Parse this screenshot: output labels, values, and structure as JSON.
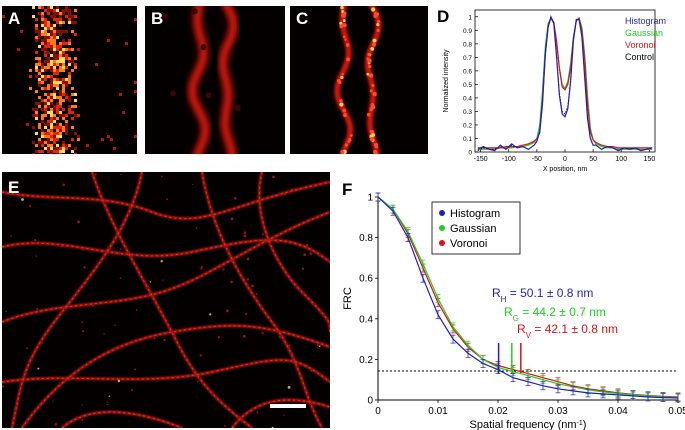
{
  "panels": {
    "A": {
      "letter": "A"
    },
    "B": {
      "letter": "B"
    },
    "C": {
      "letter": "C"
    },
    "D": {
      "letter": "D"
    },
    "E": {
      "letter": "E"
    },
    "F": {
      "letter": "F"
    }
  },
  "colors": {
    "histogram": "#1f1fbf",
    "gaussian": "#22cc22",
    "voronoi": "#dd1111",
    "control": "#000000",
    "microscopy": "#ff2a1a"
  },
  "chart_data": [
    {
      "panel": "D",
      "type": "line",
      "title": "",
      "xlabel": "X position, nm",
      "ylabel": "Normalized intensity",
      "xlim": [
        -160,
        160
      ],
      "ylim": [
        0,
        1.05
      ],
      "xticks": [
        -150,
        -100,
        -50,
        0,
        50,
        100,
        150
      ],
      "yticks": [
        0,
        0.1,
        0.2,
        0.3,
        0.4,
        0.5,
        0.6,
        0.7,
        0.8,
        0.9,
        1
      ],
      "xtick_labels": [
        "-150",
        "-100",
        "-50",
        "0",
        "50",
        "100",
        "150"
      ],
      "ytick_labels": [
        "0",
        "0.1",
        "0.2",
        "0.3",
        "0.4",
        "0.5",
        "0.6",
        "0.7",
        "0.8",
        "0.9",
        "1"
      ],
      "legend_position": "top-right",
      "x": [
        -155,
        -145,
        -135,
        -125,
        -115,
        -105,
        -95,
        -85,
        -75,
        -65,
        -55,
        -50,
        -45,
        -40,
        -35,
        -30,
        -25,
        -20,
        -15,
        -10,
        -5,
        0,
        5,
        10,
        15,
        20,
        25,
        30,
        35,
        40,
        45,
        50,
        55,
        65,
        75,
        85,
        95,
        105,
        115,
        125,
        135,
        145,
        155
      ],
      "series": [
        {
          "name": "Histogram",
          "values": [
            0.02,
            0.04,
            0.02,
            0.01,
            0.05,
            0.02,
            0.06,
            0.03,
            0.04,
            0.02,
            0.05,
            0.08,
            0.15,
            0.38,
            0.72,
            0.92,
            1.0,
            0.95,
            0.7,
            0.42,
            0.28,
            0.26,
            0.32,
            0.52,
            0.82,
            0.98,
            0.98,
            0.85,
            0.55,
            0.25,
            0.1,
            0.05,
            0.05,
            0.02,
            0.04,
            0.03,
            0.01,
            0.03,
            0.02,
            0.03,
            0.01,
            0.02,
            0.03
          ]
        },
        {
          "name": "Gaussian",
          "values": [
            0.02,
            0.02,
            0.02,
            0.02,
            0.03,
            0.03,
            0.03,
            0.04,
            0.04,
            0.05,
            0.07,
            0.1,
            0.2,
            0.45,
            0.78,
            0.95,
            0.99,
            0.95,
            0.8,
            0.62,
            0.5,
            0.47,
            0.52,
            0.65,
            0.85,
            0.97,
            0.99,
            0.92,
            0.72,
            0.42,
            0.18,
            0.09,
            0.06,
            0.04,
            0.03,
            0.03,
            0.02,
            0.02,
            0.02,
            0.02,
            0.02,
            0.02,
            0.02
          ]
        },
        {
          "name": "Voronoi",
          "values": [
            0.03,
            0.03,
            0.03,
            0.03,
            0.03,
            0.04,
            0.04,
            0.04,
            0.05,
            0.06,
            0.08,
            0.1,
            0.14,
            0.35,
            0.72,
            0.93,
            0.99,
            0.96,
            0.82,
            0.62,
            0.48,
            0.46,
            0.5,
            0.62,
            0.84,
            0.97,
            0.99,
            0.9,
            0.68,
            0.35,
            0.15,
            0.09,
            0.07,
            0.05,
            0.04,
            0.04,
            0.03,
            0.03,
            0.03,
            0.03,
            0.03,
            0.03,
            0.03
          ]
        },
        {
          "name": "Control",
          "values": [
            0.01,
            0.03,
            0.02,
            0.02,
            0.04,
            0.02,
            0.05,
            0.03,
            0.04,
            0.02,
            0.05,
            0.08,
            0.16,
            0.4,
            0.74,
            0.93,
            1.0,
            0.96,
            0.72,
            0.44,
            0.3,
            0.28,
            0.34,
            0.54,
            0.84,
            0.98,
            0.98,
            0.86,
            0.56,
            0.26,
            0.11,
            0.05,
            0.05,
            0.02,
            0.04,
            0.03,
            0.01,
            0.03,
            0.02,
            0.03,
            0.01,
            0.02,
            0.03
          ]
        }
      ]
    },
    {
      "panel": "F",
      "type": "scatter",
      "title": "",
      "xlabel": "Spatial frequency (nm",
      "xlabel_sup": "-1",
      "xlabel_end": ")",
      "ylabel": "FRC",
      "xlim": [
        0,
        0.05
      ],
      "ylim": [
        0,
        1
      ],
      "xticks": [
        0,
        0.01,
        0.02,
        0.03,
        0.04,
        0.05
      ],
      "yticks": [
        0,
        0.2,
        0.4,
        0.6,
        0.8,
        1
      ],
      "xtick_labels": [
        "0",
        "0.01",
        "0.02",
        "0.03",
        "0.04",
        "0.05"
      ],
      "ytick_labels": [
        "0",
        "0.2",
        "0.4",
        "0.6",
        "0.8",
        "1"
      ],
      "legend_position": "top-center",
      "threshold": 0.143,
      "x": [
        0,
        0.0025,
        0.005,
        0.0075,
        0.01,
        0.0125,
        0.015,
        0.0175,
        0.02,
        0.0225,
        0.025,
        0.0275,
        0.03,
        0.0325,
        0.035,
        0.0375,
        0.04,
        0.0425,
        0.045,
        0.0475,
        0.05
      ],
      "series": [
        {
          "name": "Histogram",
          "values": [
            1.0,
            0.93,
            0.8,
            0.6,
            0.42,
            0.3,
            0.23,
            0.18,
            0.15,
            0.11,
            0.09,
            0.07,
            0.055,
            0.045,
            0.035,
            0.03,
            0.025,
            0.02,
            0.015,
            0.012,
            0.01
          ]
        },
        {
          "name": "Gaussian",
          "values": [
            1.0,
            0.94,
            0.83,
            0.67,
            0.5,
            0.36,
            0.27,
            0.2,
            0.16,
            0.14,
            0.12,
            0.1,
            0.08,
            0.065,
            0.05,
            0.04,
            0.032,
            0.026,
            0.02,
            0.016,
            0.012
          ]
        },
        {
          "name": "Voronoi",
          "values": [
            1.0,
            0.94,
            0.82,
            0.65,
            0.48,
            0.35,
            0.26,
            0.2,
            0.17,
            0.15,
            0.13,
            0.11,
            0.09,
            0.07,
            0.055,
            0.045,
            0.035,
            0.028,
            0.022,
            0.018,
            0.015
          ]
        }
      ],
      "resolution_markers": [
        {
          "series": "Histogram",
          "x": 0.0201
        },
        {
          "series": "Gaussian",
          "x": 0.0223
        },
        {
          "series": "Voronoi",
          "x": 0.0238
        }
      ],
      "annotations": [
        {
          "series": "Histogram",
          "symbol": "R",
          "sub": "H",
          "text": " = 50.1 ± 0.8 nm"
        },
        {
          "series": "Gaussian",
          "symbol": "R",
          "sub": "G",
          "text": " = 44.2 ± 0.7 nm"
        },
        {
          "series": "Voronoi",
          "symbol": "R",
          "sub": "V",
          "text": " = 42.1 ± 0.8 nm"
        }
      ]
    }
  ]
}
